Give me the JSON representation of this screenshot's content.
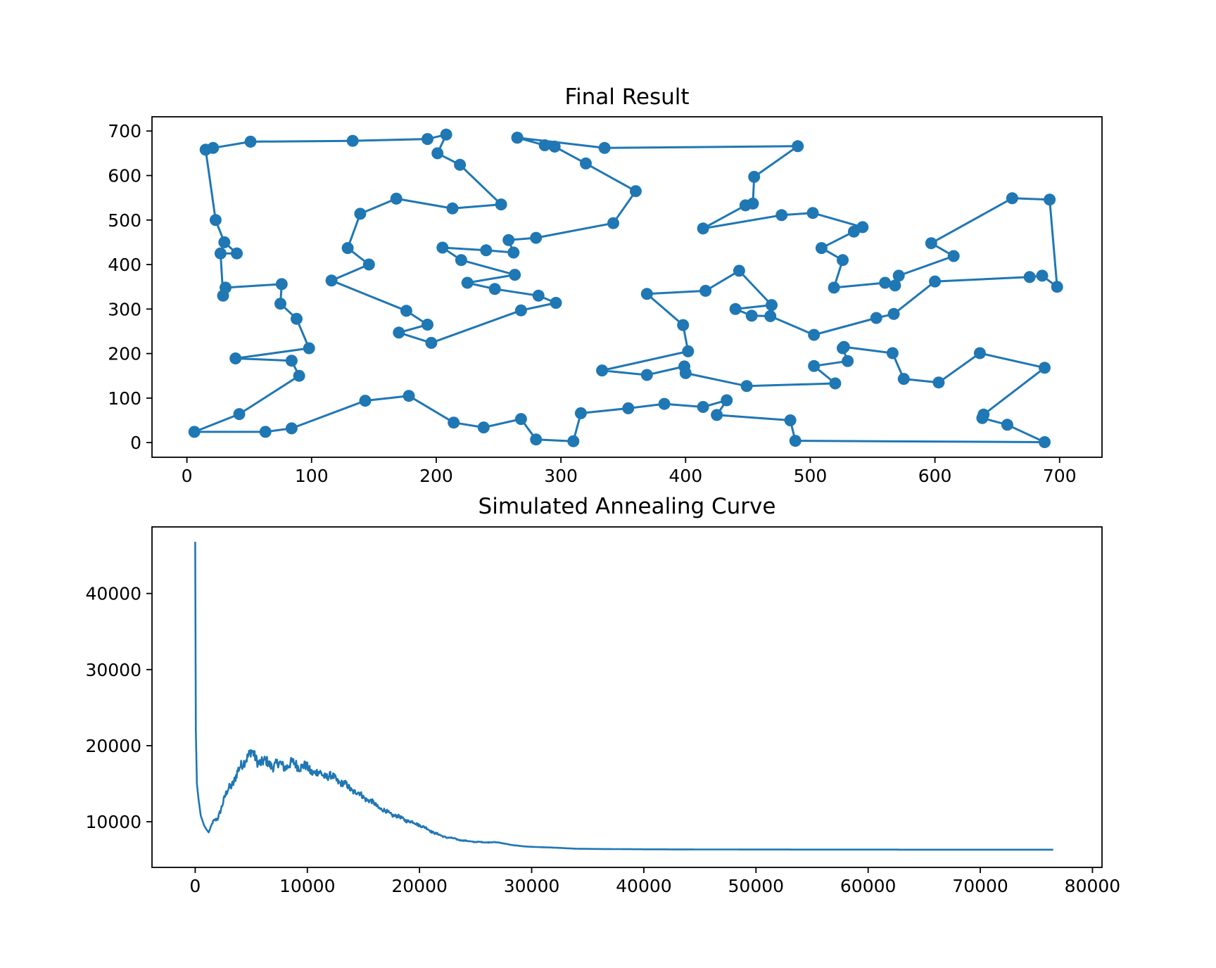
{
  "chart_data": [
    {
      "type": "line",
      "title": "Final Result",
      "xlabel": "",
      "ylabel": "",
      "xlim": [
        -28,
        734
      ],
      "ylim": [
        -33,
        732
      ],
      "xticks": [
        "0",
        "100",
        "200",
        "300",
        "400",
        "500",
        "600",
        "700"
      ],
      "yticks": [
        "0",
        "100",
        "200",
        "300",
        "400",
        "500",
        "600",
        "700"
      ],
      "grid": false,
      "marker": "circle",
      "color": "#1f77b4",
      "series": [
        {
          "points": [
            [
              265,
              685
            ],
            [
              287,
              668
            ],
            [
              295,
              665
            ],
            [
              320,
              627
            ],
            [
              360,
              565
            ],
            [
              342,
              493
            ],
            [
              280,
              460
            ],
            [
              258,
              455
            ],
            [
              262,
              427
            ],
            [
              240,
              432
            ],
            [
              205,
              438
            ],
            [
              220,
              410
            ],
            [
              263,
              377
            ],
            [
              225,
              359
            ],
            [
              247,
              345
            ],
            [
              282,
              330
            ],
            [
              296,
              314
            ],
            [
              268,
              297
            ],
            [
              196,
              224
            ],
            [
              170,
              247
            ],
            [
              193,
              265
            ],
            [
              176,
              296
            ],
            [
              116,
              364
            ],
            [
              146,
              400
            ],
            [
              129,
              437
            ],
            [
              139,
              514
            ],
            [
              168,
              548
            ],
            [
              213,
              526
            ],
            [
              252,
              535
            ],
            [
              219,
              624
            ],
            [
              201,
              650
            ],
            [
              208,
              692
            ],
            [
              193,
              682
            ],
            [
              133,
              678
            ],
            [
              51,
              676
            ],
            [
              21,
              662
            ],
            [
              15,
              658
            ],
            [
              23,
              500
            ],
            [
              30,
              450
            ],
            [
              40,
              425
            ],
            [
              27,
              425
            ],
            [
              29,
              330
            ],
            [
              31,
              348
            ],
            [
              76,
              356
            ],
            [
              75,
              312
            ],
            [
              88,
              278
            ],
            [
              98,
              212
            ],
            [
              39,
              189
            ],
            [
              84,
              184
            ],
            [
              90,
              150
            ],
            [
              42,
              64
            ],
            [
              6,
              24
            ],
            [
              63,
              24
            ],
            [
              84,
              32
            ],
            [
              143,
              94
            ],
            [
              178,
              105
            ],
            [
              214,
              45
            ],
            [
              238,
              34
            ],
            [
              268,
              53
            ],
            [
              280,
              7
            ],
            [
              310,
              3
            ],
            [
              316,
              66
            ],
            [
              354,
              77
            ],
            [
              383,
              87
            ],
            [
              414,
              80
            ],
            [
              433,
              95
            ],
            [
              425,
              62
            ],
            [
              484,
              50
            ],
            [
              488,
              4
            ],
            [
              688,
              1
            ],
            [
              658,
              40
            ],
            [
              638,
              55
            ],
            [
              639,
              63
            ],
            [
              688,
              168
            ],
            [
              636,
              201
            ],
            [
              603,
              135
            ],
            [
              575,
              143
            ],
            [
              566,
              201
            ],
            [
              527,
              215
            ],
            [
              526,
              212
            ],
            [
              530,
              183
            ],
            [
              503,
              172
            ],
            [
              520,
              133
            ],
            [
              449,
              127
            ],
            [
              400,
              156
            ],
            [
              399,
              171
            ],
            [
              369,
              152
            ],
            [
              333,
              162
            ],
            [
              402,
              205
            ],
            [
              398,
              264
            ],
            [
              369,
              334
            ],
            [
              416,
              341
            ],
            [
              443,
              386
            ],
            [
              469,
              309
            ],
            [
              440,
              300
            ],
            [
              453,
              285
            ],
            [
              468,
              284
            ],
            [
              503,
              242
            ],
            [
              553,
              280
            ],
            [
              567,
              289
            ],
            [
              600,
              362
            ],
            [
              676,
              372
            ],
            [
              686,
              375
            ],
            [
              698,
              350
            ],
            [
              692,
              546
            ],
            [
              662,
              549
            ],
            [
              597,
              448
            ],
            [
              615,
              419
            ],
            [
              571,
              375
            ],
            [
              568,
              353
            ],
            [
              560,
              359
            ],
            [
              519,
              348
            ],
            [
              526,
              410
            ],
            [
              509,
              437
            ],
            [
              535,
              474
            ],
            [
              542,
              484
            ],
            [
              502,
              516
            ],
            [
              477,
              511
            ],
            [
              414,
              481
            ],
            [
              448,
              533
            ],
            [
              454,
              537
            ],
            [
              455,
              597
            ],
            [
              490,
              666
            ],
            [
              335,
              662
            ],
            [
              265,
              685
            ]
          ]
        }
      ]
    },
    {
      "type": "line",
      "title": "Simulated Annealing Curve",
      "xlabel": "",
      "ylabel": "",
      "xlim": [
        -3850,
        80850
      ],
      "ylim": [
        4000,
        48750
      ],
      "xticks": [
        "0",
        "10000",
        "20000",
        "30000",
        "40000",
        "50000",
        "60000",
        "70000",
        "80000"
      ],
      "yticks": [
        "10000",
        "20000",
        "30000",
        "40000"
      ],
      "grid": false,
      "color": "#1f77b4",
      "series": [
        {
          "x": [
            0,
            60,
            150,
            300,
            500,
            800,
            1000,
            1200,
            1600,
            2000,
            2500,
            3000,
            3500,
            4000,
            4500,
            5000,
            5500,
            6000,
            7000,
            8000,
            9000,
            10000,
            11000,
            12000,
            13000,
            14000,
            15000,
            16000,
            17000,
            18000,
            19000,
            20000,
            21000,
            22000,
            23000,
            24000,
            25000,
            26000,
            27000,
            28000,
            29000,
            30000,
            32000,
            34000,
            36000,
            38000,
            40000,
            45000,
            50000,
            55000,
            60000,
            65000,
            70000,
            76500
          ],
          "y": [
            46800,
            22000,
            15000,
            13000,
            10800,
            9500,
            9000,
            8600,
            10000,
            10500,
            12500,
            14500,
            15500,
            17000,
            18500,
            19000,
            18200,
            17800,
            17500,
            17400,
            17600,
            17000,
            16300,
            16000,
            15200,
            14200,
            13300,
            12300,
            11300,
            10700,
            10100,
            9600,
            8800,
            8100,
            7800,
            7500,
            7350,
            7300,
            7300,
            7000,
            6800,
            6700,
            6600,
            6450,
            6420,
            6400,
            6380,
            6360,
            6350,
            6340,
            6340,
            6330,
            6330,
            6330
          ],
          "noise": [
            0,
            0,
            0,
            0,
            0,
            0,
            0,
            0,
            300,
            500,
            800,
            1000,
            1200,
            1300,
            1400,
            1400,
            1400,
            1400,
            1300,
            1300,
            1300,
            1200,
            1100,
            1000,
            900,
            800,
            700,
            600,
            500,
            450,
            400,
            350,
            300,
            200,
            150,
            120,
            100,
            80,
            60,
            40,
            30,
            20,
            10,
            5,
            0,
            0,
            0,
            0,
            0,
            0,
            0,
            0,
            0,
            0
          ]
        }
      ]
    }
  ]
}
